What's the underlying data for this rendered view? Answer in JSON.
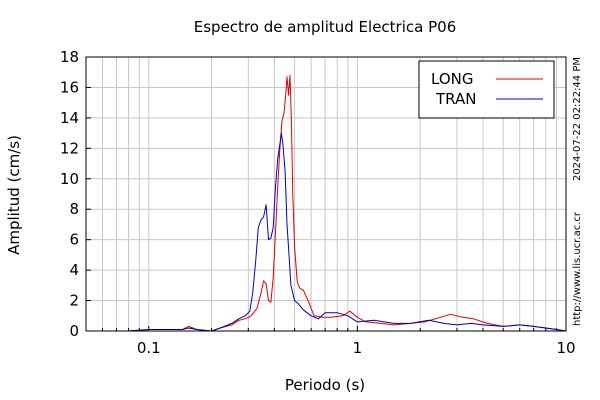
{
  "chart_data": {
    "type": "line",
    "title": "Espectro de amplitud Electrica P06",
    "xlabel": "Periodo (s)",
    "ylabel": "Amplitud (cm/s)",
    "xscale": "log",
    "xlim": [
      0.05,
      10
    ],
    "ylim": [
      0,
      18
    ],
    "grid": true,
    "legend_position": "top-right",
    "x_ticks": [
      {
        "value": 0.1,
        "label": "0.1"
      },
      {
        "value": 1,
        "label": "1"
      },
      {
        "value": 10,
        "label": "10"
      }
    ],
    "y_ticks": [
      {
        "value": 0,
        "label": "0"
      },
      {
        "value": 2,
        "label": "2"
      },
      {
        "value": 4,
        "label": "4"
      },
      {
        "value": 6,
        "label": "6"
      },
      {
        "value": 8,
        "label": "8"
      },
      {
        "value": 10,
        "label": "10"
      },
      {
        "value": 12,
        "label": "12"
      },
      {
        "value": 14,
        "label": "14"
      },
      {
        "value": 16,
        "label": "16"
      },
      {
        "value": 18,
        "label": "18"
      }
    ],
    "series": [
      {
        "name": "LONG",
        "color": "#e00000",
        "x": [
          0.05,
          0.08,
          0.1,
          0.12,
          0.145,
          0.155,
          0.17,
          0.2,
          0.22,
          0.25,
          0.27,
          0.29,
          0.31,
          0.33,
          0.345,
          0.355,
          0.365,
          0.375,
          0.385,
          0.395,
          0.405,
          0.415,
          0.425,
          0.435,
          0.445,
          0.455,
          0.46,
          0.468,
          0.475,
          0.482,
          0.49,
          0.5,
          0.515,
          0.53,
          0.55,
          0.58,
          0.62,
          0.68,
          0.75,
          0.85,
          0.92,
          1.0,
          1.1,
          1.3,
          1.5,
          1.8,
          2.1,
          2.5,
          2.8,
          3.2,
          3.6,
          4.2,
          5,
          6,
          7,
          8,
          9,
          10
        ],
        "y": [
          0,
          0,
          0.1,
          0.1,
          0.1,
          0.3,
          0.1,
          0,
          0.2,
          0.4,
          0.7,
          0.8,
          1.0,
          1.5,
          2.5,
          3.3,
          3.1,
          2.0,
          1.9,
          3.5,
          6.5,
          9.5,
          12.0,
          13.8,
          14.3,
          15.8,
          16.7,
          15.5,
          16.8,
          14.0,
          9.0,
          5.5,
          3.2,
          2.8,
          2.7,
          2.0,
          1.0,
          0.9,
          0.9,
          1.0,
          1.3,
          0.9,
          0.6,
          0.5,
          0.4,
          0.5,
          0.6,
          0.9,
          1.1,
          0.9,
          0.8,
          0.5,
          0.3,
          0.4,
          0.3,
          0.2,
          0.1,
          0
        ]
      },
      {
        "name": "TRAN",
        "color": "#0000c0",
        "x": [
          0.05,
          0.08,
          0.1,
          0.12,
          0.145,
          0.155,
          0.17,
          0.2,
          0.22,
          0.25,
          0.27,
          0.29,
          0.305,
          0.315,
          0.325,
          0.335,
          0.345,
          0.355,
          0.365,
          0.375,
          0.385,
          0.395,
          0.405,
          0.415,
          0.425,
          0.432,
          0.44,
          0.45,
          0.46,
          0.47,
          0.48,
          0.5,
          0.52,
          0.55,
          0.6,
          0.65,
          0.7,
          0.8,
          0.9,
          1.0,
          1.2,
          1.5,
          1.8,
          2.2,
          2.6,
          3.0,
          3.5,
          4.0,
          5,
          6,
          7,
          8,
          9,
          10
        ],
        "y": [
          0,
          0,
          0.1,
          0.1,
          0.1,
          0.2,
          0.1,
          0,
          0.2,
          0.5,
          0.8,
          1.0,
          1.3,
          2.5,
          4.5,
          6.8,
          7.3,
          7.5,
          8.3,
          6.0,
          6.1,
          6.8,
          9.5,
          11.3,
          12.3,
          13.0,
          12.2,
          10.5,
          7.0,
          5.0,
          3.0,
          2.0,
          1.8,
          1.4,
          1.0,
          0.8,
          1.2,
          1.2,
          1.0,
          0.6,
          0.7,
          0.5,
          0.5,
          0.7,
          0.5,
          0.4,
          0.5,
          0.4,
          0.3,
          0.4,
          0.3,
          0.2,
          0.1,
          0
        ]
      }
    ]
  },
  "timestamp_text": "2024-07-22 02:22:44 PM",
  "url_text": "http://www.lis.ucr.ac.cr"
}
